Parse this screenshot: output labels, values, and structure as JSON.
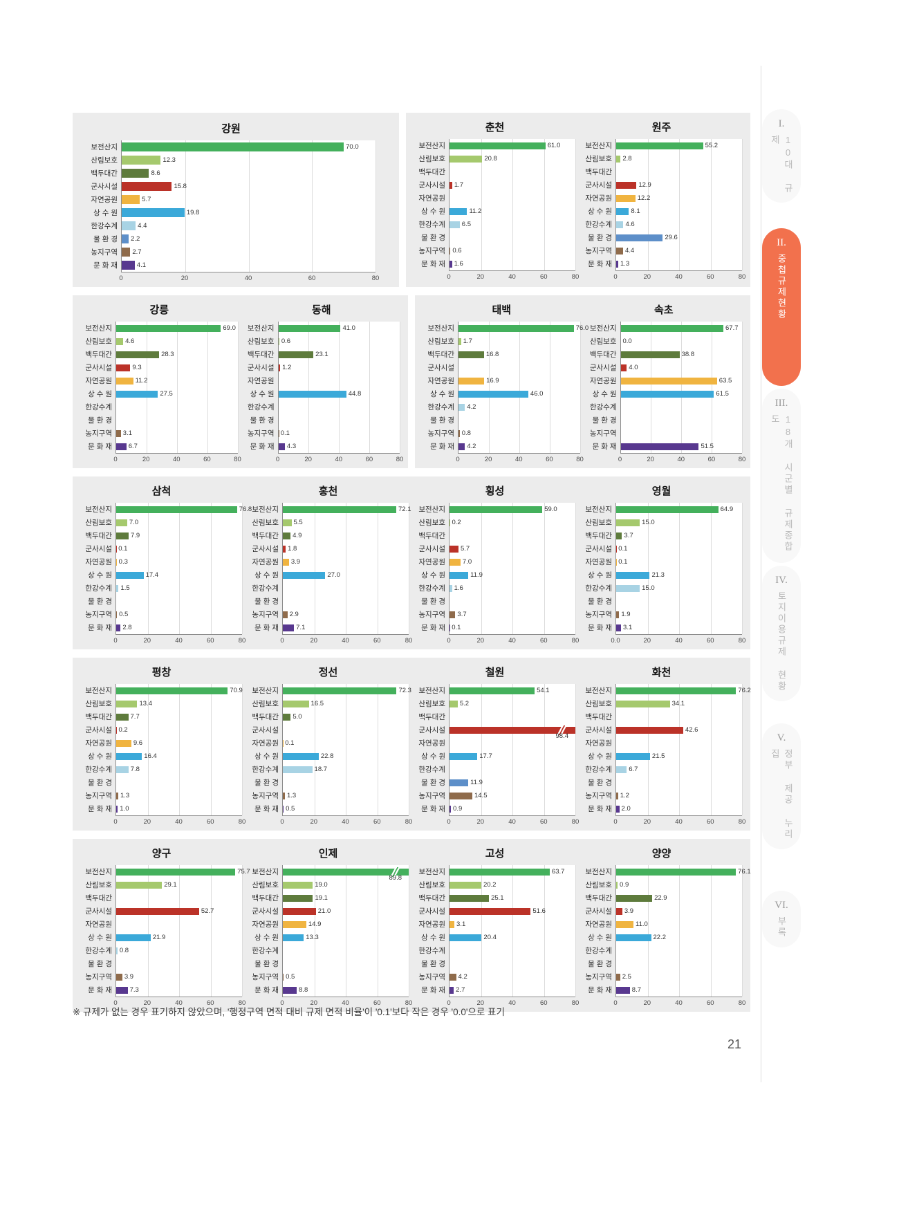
{
  "page": {
    "page_number": "21",
    "footnote": "※ 규제가 없는 경우 표기하지 않았으며, '행정구역 면적 대비 규제 면적 비율'이 '0.1'보다 작은 경우 '0.0'으로 표기"
  },
  "colors": {
    "panel_bg": "#ececec",
    "gridline": "#dcdcdc",
    "axis_line": "#8c8c8c",
    "sidebar_active": "#f2714d"
  },
  "sidebar": {
    "items": [
      {
        "numeral": "I.",
        "label": "10대 규제",
        "active": false
      },
      {
        "numeral": "II.",
        "label": "중첩규제현황",
        "active": true
      },
      {
        "numeral": "III.",
        "label": "18개 시군별 규제종합도",
        "active": false
      },
      {
        "numeral": "IV.",
        "label": "토지이용규제 현황",
        "active": false
      },
      {
        "numeral": "V.",
        "label": "정부 제공 누리집",
        "active": false
      },
      {
        "numeral": "VI.",
        "label": "부록",
        "active": false
      }
    ]
  },
  "chart_data": {
    "type": "bar",
    "orientation": "horizontal",
    "categories": [
      "보전산지",
      "산림보호",
      "백두대간",
      "군사시설",
      "자연공원",
      "상 수 원",
      "한강수계",
      "물 환 경",
      "농지구역",
      "문 화 재"
    ],
    "colors": [
      "#44b05c",
      "#a5c96d",
      "#5e7b3c",
      "#bb3228",
      "#f0b440",
      "#3ba9d9",
      "#a8d3e4",
      "#5d8fc9",
      "#8f6b4b",
      "#58388f"
    ],
    "axis": {
      "ticks": [
        0,
        20,
        40,
        60,
        80
      ],
      "max": 80
    },
    "charts": [
      {
        "region": "강원",
        "slug": "gangwon",
        "values": [
          70.0,
          12.3,
          8.6,
          15.8,
          5.7,
          19.8,
          4.4,
          2.2,
          2.7,
          4.1
        ]
      },
      {
        "region": "춘천",
        "slug": "chuncheon",
        "values": [
          61.0,
          20.8,
          null,
          1.7,
          null,
          11.2,
          6.5,
          null,
          0.6,
          1.6
        ]
      },
      {
        "region": "원주",
        "slug": "wonju",
        "values": [
          55.2,
          2.8,
          null,
          12.9,
          12.2,
          8.1,
          4.6,
          29.6,
          4.4,
          1.3
        ]
      },
      {
        "region": "강릉",
        "slug": "gangneung",
        "values": [
          69.0,
          4.6,
          28.3,
          9.3,
          11.2,
          27.5,
          null,
          null,
          3.1,
          6.7
        ]
      },
      {
        "region": "동해",
        "slug": "donghae",
        "values": [
          41.0,
          0.6,
          23.1,
          1.2,
          null,
          44.8,
          null,
          null,
          0.1,
          4.3
        ]
      },
      {
        "region": "태백",
        "slug": "taebaek",
        "values": [
          76.0,
          1.7,
          16.8,
          null,
          16.9,
          46.0,
          4.2,
          null,
          0.8,
          4.2
        ]
      },
      {
        "region": "속초",
        "slug": "sokcho",
        "values": [
          67.7,
          0.0,
          38.8,
          4.0,
          63.5,
          61.5,
          null,
          null,
          null,
          51.5
        ]
      },
      {
        "region": "삼척",
        "slug": "samcheok",
        "values": [
          76.8,
          7.0,
          7.9,
          0.1,
          0.3,
          17.4,
          1.5,
          null,
          0.5,
          2.8
        ]
      },
      {
        "region": "홍천",
        "slug": "hongcheon",
        "values": [
          72.1,
          5.5,
          4.9,
          1.8,
          3.9,
          27.0,
          null,
          null,
          2.9,
          7.1
        ]
      },
      {
        "region": "횡성",
        "slug": "hoengseong",
        "values": [
          59.0,
          0.2,
          null,
          5.7,
          7.0,
          11.9,
          1.6,
          null,
          3.7,
          0.1
        ]
      },
      {
        "region": "영월",
        "slug": "yeongwol",
        "values": [
          64.9,
          15.0,
          3.7,
          0.1,
          0.1,
          21.3,
          15.0,
          null,
          1.9,
          3.1
        ],
        "zero_label": "0.0"
      },
      {
        "region": "평창",
        "slug": "pyeongchang",
        "values": [
          70.9,
          13.4,
          7.7,
          0.2,
          9.6,
          16.4,
          7.8,
          null,
          1.3,
          1.0
        ]
      },
      {
        "region": "정선",
        "slug": "jeongseon",
        "values": [
          72.3,
          16.5,
          5.0,
          null,
          0.1,
          22.8,
          18.7,
          null,
          1.3,
          0.5
        ]
      },
      {
        "region": "철원",
        "slug": "cheorwon",
        "values": [
          54.1,
          5.2,
          null,
          98.4,
          null,
          17.7,
          null,
          11.9,
          14.5,
          0.9
        ]
      },
      {
        "region": "화천",
        "slug": "hwacheon",
        "values": [
          76.2,
          34.1,
          null,
          42.6,
          null,
          21.5,
          6.7,
          null,
          1.2,
          2.0
        ]
      },
      {
        "region": "양구",
        "slug": "yanggu",
        "values": [
          75.7,
          29.1,
          null,
          52.7,
          null,
          21.9,
          0.8,
          null,
          3.9,
          7.3
        ]
      },
      {
        "region": "인제",
        "slug": "inje",
        "values": [
          89.8,
          19.0,
          19.1,
          21.0,
          14.9,
          13.3,
          null,
          null,
          0.5,
          8.8
        ]
      },
      {
        "region": "고성",
        "slug": "goseong",
        "values": [
          63.7,
          20.2,
          25.1,
          51.6,
          3.1,
          20.4,
          null,
          null,
          4.2,
          2.7
        ]
      },
      {
        "region": "양양",
        "slug": "yangyang",
        "values": [
          76.1,
          0.9,
          22.9,
          3.9,
          11.0,
          22.2,
          null,
          null,
          2.5,
          8.7
        ]
      }
    ]
  }
}
